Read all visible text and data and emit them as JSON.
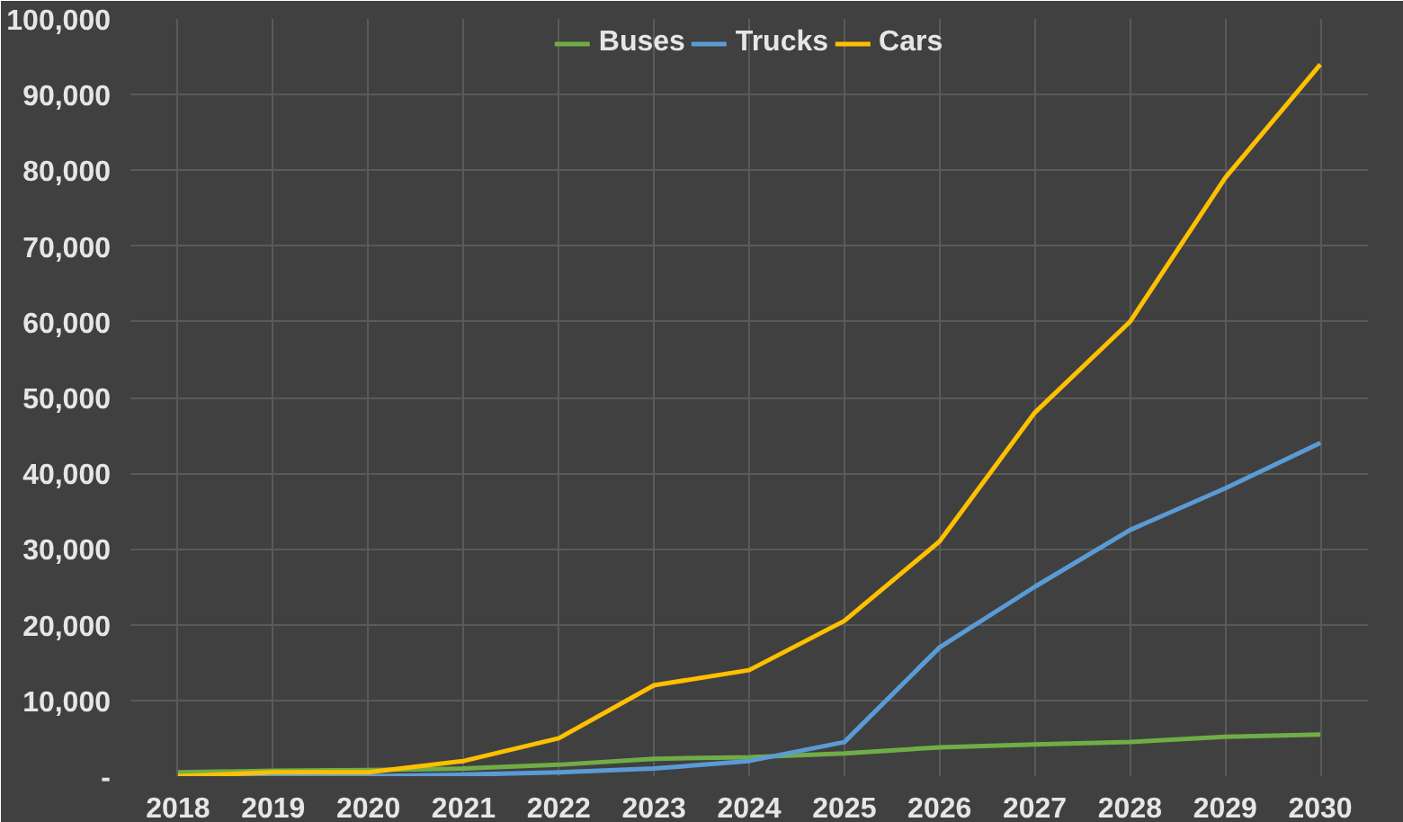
{
  "chart_data": {
    "type": "line",
    "categories": [
      "2018",
      "2019",
      "2020",
      "2021",
      "2022",
      "2023",
      "2024",
      "2025",
      "2026",
      "2027",
      "2028",
      "2029",
      "2030"
    ],
    "series": [
      {
        "name": "Buses",
        "color": "#70ad47",
        "values": [
          500,
          700,
          800,
          1000,
          1500,
          2300,
          2500,
          3000,
          3800,
          4200,
          4500,
          5200,
          5500
        ]
      },
      {
        "name": "Trucks",
        "color": "#5b9bd5",
        "values": [
          0,
          0,
          0,
          200,
          500,
          1000,
          2000,
          4500,
          17000,
          25000,
          32500,
          38000,
          44000
        ]
      },
      {
        "name": "Cars",
        "color": "#ffc000",
        "values": [
          0,
          500,
          500,
          2000,
          5000,
          12000,
          14000,
          20500,
          31000,
          48000,
          60000,
          79000,
          94000
        ]
      }
    ],
    "ylim": [
      0,
      100000
    ],
    "yticks": [
      {
        "value": 0,
        "label": "-"
      },
      {
        "value": 10000,
        "label": "10,000"
      },
      {
        "value": 20000,
        "label": "20,000"
      },
      {
        "value": 30000,
        "label": "30,000"
      },
      {
        "value": 40000,
        "label": "40,000"
      },
      {
        "value": 50000,
        "label": "50,000"
      },
      {
        "value": 60000,
        "label": "60,000"
      },
      {
        "value": 70000,
        "label": "70,000"
      },
      {
        "value": 80000,
        "label": "80,000"
      },
      {
        "value": 90000,
        "label": "90,000"
      },
      {
        "value": 100000,
        "label": "100,000"
      }
    ],
    "grid": true,
    "legend": "top"
  }
}
